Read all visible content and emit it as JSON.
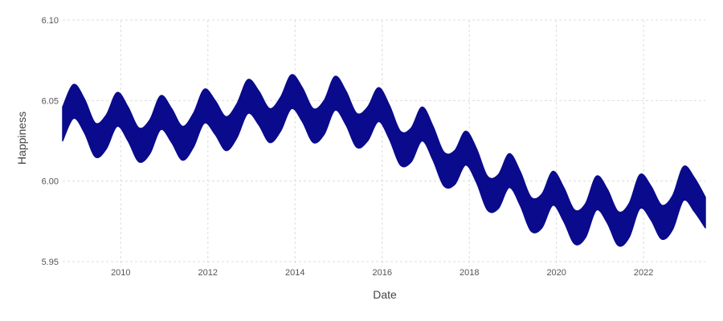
{
  "chart_data": {
    "type": "area",
    "title": "",
    "xlabel": "Date",
    "ylabel": "Happiness",
    "x_range": [
      "2008-09-01",
      "2023-06-01"
    ],
    "ylim": [
      5.947,
      6.1
    ],
    "x_ticks": [
      "2010",
      "2012",
      "2014",
      "2016",
      "2018",
      "2020",
      "2022"
    ],
    "y_ticks": [
      "5.95",
      "6.00",
      "6.05",
      "6.10"
    ],
    "grid": true,
    "band_color": "#0a0a8c",
    "series": [
      {
        "x": [
          "2008-09-01",
          "2008-12-01",
          "2009-03-01",
          "2009-06-01",
          "2009-09-01",
          "2009-12-01",
          "2010-03-01",
          "2010-06-01",
          "2010-09-01",
          "2010-12-01",
          "2011-03-01",
          "2011-06-01",
          "2011-09-01",
          "2011-12-01",
          "2012-03-01",
          "2012-06-01",
          "2012-09-01",
          "2012-12-01",
          "2013-03-01",
          "2013-06-01",
          "2013-09-01",
          "2013-12-01",
          "2014-03-01",
          "2014-06-01",
          "2014-09-01",
          "2014-12-01",
          "2015-03-01",
          "2015-06-01",
          "2015-09-01",
          "2015-12-01",
          "2016-03-01",
          "2016-06-01",
          "2016-09-01",
          "2016-12-01",
          "2017-03-01",
          "2017-06-01",
          "2017-09-01",
          "2017-12-01",
          "2018-03-01",
          "2018-06-01",
          "2018-09-01",
          "2018-12-01",
          "2019-03-01",
          "2019-06-01",
          "2019-09-01",
          "2019-12-01",
          "2020-03-01",
          "2020-06-01",
          "2020-09-01",
          "2020-12-01",
          "2021-03-01",
          "2021-06-01",
          "2021-09-01",
          "2021-12-01",
          "2022-03-01",
          "2022-06-01",
          "2022-09-01",
          "2022-12-01",
          "2023-03-01",
          "2023-06-01"
        ],
        "upper": [
          6.046,
          6.06,
          6.051,
          6.036,
          6.041,
          6.055,
          6.046,
          6.033,
          6.038,
          6.053,
          6.045,
          6.034,
          6.042,
          6.057,
          6.05,
          6.04,
          6.048,
          6.063,
          6.056,
          6.045,
          6.052,
          6.066,
          6.058,
          6.045,
          6.05,
          6.065,
          6.056,
          6.042,
          6.046,
          6.058,
          6.047,
          6.031,
          6.033,
          6.046,
          6.034,
          6.018,
          6.019,
          6.031,
          6.02,
          6.003,
          6.004,
          6.017,
          6.006,
          5.99,
          5.992,
          6.006,
          5.996,
          5.982,
          5.986,
          6.003,
          5.995,
          5.981,
          5.986,
          6.004,
          5.997,
          5.985,
          5.991,
          6.009,
          6.002,
          5.99
        ],
        "lower": [
          6.025,
          6.039,
          6.03,
          6.015,
          6.02,
          6.034,
          6.025,
          6.012,
          6.017,
          6.032,
          6.024,
          6.013,
          6.021,
          6.036,
          6.029,
          6.019,
          6.027,
          6.042,
          6.035,
          6.024,
          6.031,
          6.045,
          6.037,
          6.024,
          6.029,
          6.044,
          6.035,
          6.021,
          6.025,
          6.037,
          6.026,
          6.01,
          6.012,
          6.025,
          6.013,
          5.997,
          5.998,
          6.01,
          5.999,
          5.982,
          5.983,
          5.996,
          5.985,
          5.969,
          5.971,
          5.985,
          5.975,
          5.961,
          5.965,
          5.982,
          5.974,
          5.96,
          5.965,
          5.983,
          5.976,
          5.964,
          5.97,
          5.988,
          5.981,
          5.971
        ]
      }
    ]
  }
}
